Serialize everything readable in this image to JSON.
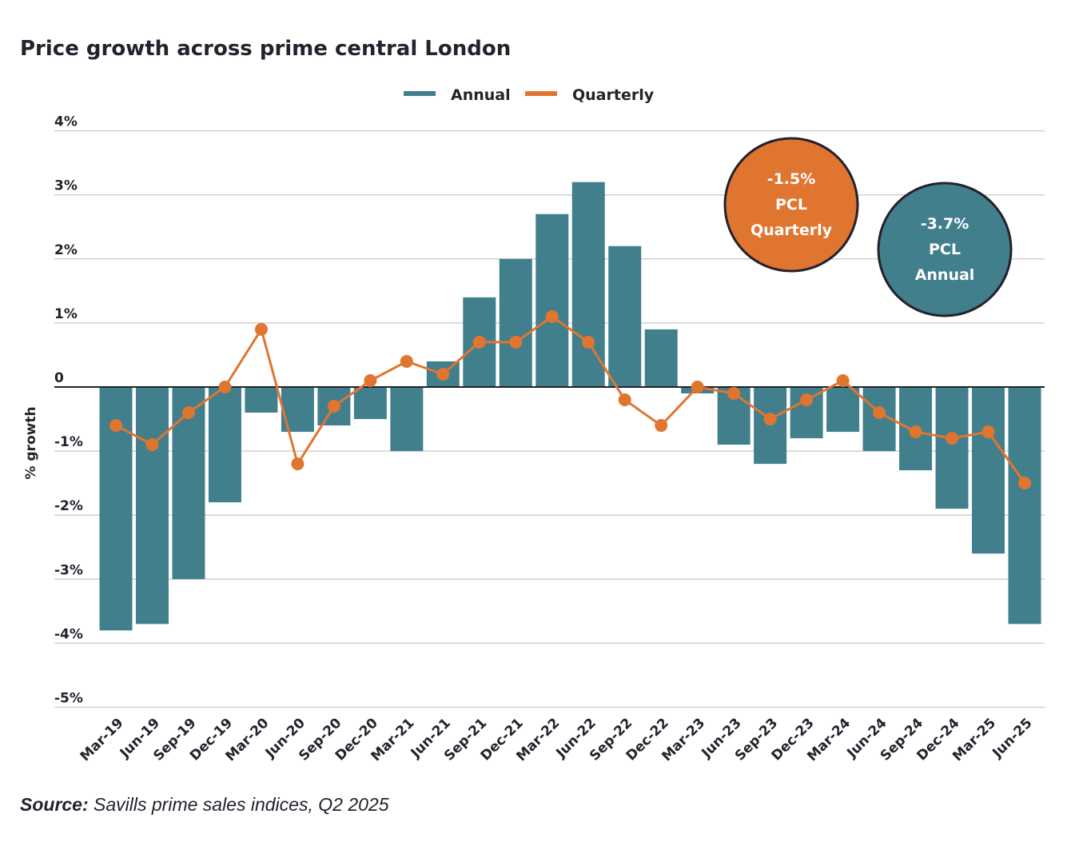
{
  "chart_data": {
    "type": "bar",
    "title": "Price growth across prime central London",
    "ylabel": "% growth",
    "xlabel": "",
    "ylim": [
      -5,
      4
    ],
    "yticks": [
      "4%",
      "3%",
      "2%",
      "1%",
      "0",
      "-1%",
      "-2%",
      "-3%",
      "-4%",
      "-5%"
    ],
    "grid": true,
    "legend": "top-center",
    "categories": [
      "Mar-19",
      "Jun-19",
      "Sep-19",
      "Dec-19",
      "Mar-20",
      "Jun-20",
      "Sep-20",
      "Dec-20",
      "Mar-21",
      "Jun-21",
      "Sep-21",
      "Dec-21",
      "Mar-22",
      "Jun-22",
      "Sep-22",
      "Dec-22",
      "Mar-23",
      "Jun-23",
      "Sep-23",
      "Dec-23",
      "Mar-24",
      "Jun-24",
      "Sep-24",
      "Dec-24",
      "Mar-25",
      "Jun-25"
    ],
    "series": [
      {
        "name": "Annual",
        "type": "bar",
        "color": "#417f8d",
        "values": [
          -3.8,
          -3.7,
          -3.0,
          -1.8,
          -0.4,
          -0.7,
          -0.6,
          -0.5,
          -1.0,
          0.4,
          1.4,
          2.0,
          2.7,
          3.2,
          2.2,
          0.9,
          -0.1,
          -0.9,
          -1.2,
          -0.8,
          -0.7,
          -1.0,
          -1.3,
          -1.9,
          -2.6,
          -3.7
        ]
      },
      {
        "name": "Quarterly",
        "type": "line",
        "color": "#e07530",
        "values": [
          -0.6,
          -0.9,
          -0.4,
          0.0,
          0.9,
          -1.2,
          -0.3,
          0.1,
          0.4,
          0.2,
          0.7,
          0.7,
          1.1,
          0.7,
          -0.2,
          -0.6,
          0.0,
          -0.1,
          -0.5,
          -0.2,
          0.1,
          -0.4,
          -0.7,
          -0.8,
          -0.7,
          -1.5
        ]
      }
    ],
    "annotations": [
      {
        "value": "-1.5%",
        "line2": "PCL",
        "line3": "Quarterly",
        "color": "#e07530"
      },
      {
        "value": "-3.7%",
        "line2": "PCL",
        "line3": "Annual",
        "color": "#417f8d"
      }
    ],
    "source_label": "Source:",
    "source_text": "Savills prime sales indices, Q2 2025"
  }
}
